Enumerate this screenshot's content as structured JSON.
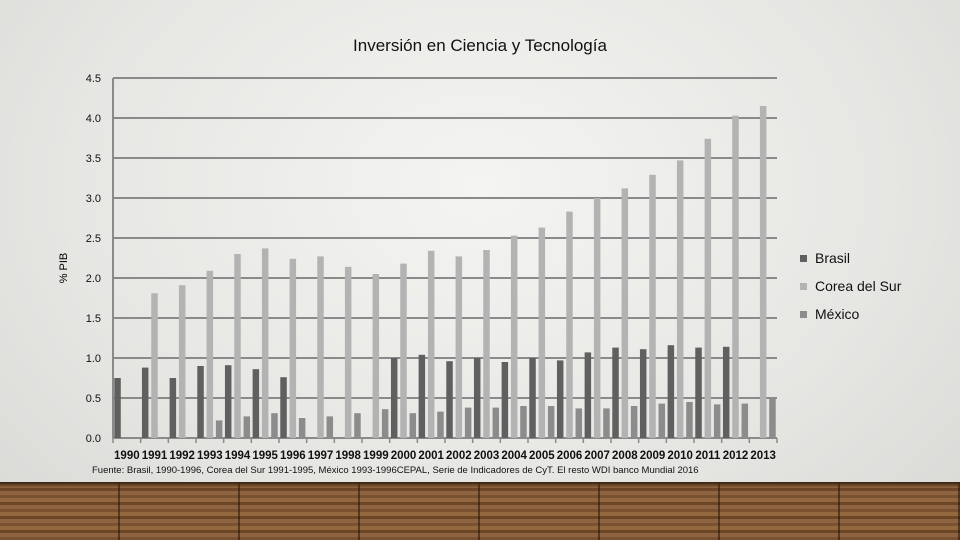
{
  "chart_data": {
    "type": "bar",
    "title": "Inversión en Ciencia y Tecnología",
    "ylabel": "% PIB",
    "xlabel": "",
    "ylim": [
      0,
      4.5
    ],
    "yticks": [
      "0.0",
      "0.5",
      "1.0",
      "1.5",
      "2.0",
      "2.5",
      "3.0",
      "3.5",
      "4.0",
      "4.5"
    ],
    "grid": true,
    "legend": "right",
    "categories": [
      "1990",
      "1991",
      "1992",
      "1993",
      "1994",
      "1995",
      "1996",
      "1997",
      "1998",
      "1999",
      "2000",
      "2001",
      "2002",
      "2003",
      "2004",
      "2005",
      "2006",
      "2007",
      "2008",
      "2009",
      "2010",
      "2011",
      "2012",
      "2013"
    ],
    "series": [
      {
        "name": "Brasil",
        "color": "#606060",
        "values": [
          0.75,
          0.88,
          0.75,
          0.9,
          0.91,
          0.86,
          0.76,
          null,
          null,
          null,
          1.0,
          1.04,
          0.96,
          1.0,
          0.95,
          1.0,
          0.97,
          1.07,
          1.13,
          1.11,
          1.16,
          1.13,
          1.14,
          null
        ]
      },
      {
        "name": "Corea del Sur",
        "color": "#b3b3b3",
        "values": [
          null,
          1.81,
          1.91,
          2.09,
          2.3,
          2.37,
          2.24,
          2.27,
          2.14,
          2.05,
          2.18,
          2.34,
          2.27,
          2.35,
          2.53,
          2.63,
          2.83,
          3.0,
          3.12,
          3.29,
          3.47,
          3.74,
          4.03,
          4.15
        ]
      },
      {
        "name": "México",
        "color": "#8c8c8c",
        "values": [
          null,
          null,
          null,
          0.22,
          0.27,
          0.31,
          0.25,
          0.27,
          0.31,
          0.36,
          0.31,
          0.33,
          0.38,
          0.38,
          0.4,
          0.4,
          0.37,
          0.37,
          0.4,
          0.43,
          0.45,
          0.42,
          0.43,
          0.5
        ]
      }
    ],
    "source": "Fuente: Brasil, 1990-1996, Corea del Sur 1991-1995, México 1993-1996CEPAL, Serie de Indicadores de CyT. El resto WDI banco Mundial 2016"
  }
}
